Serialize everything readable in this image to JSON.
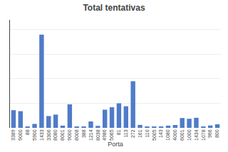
{
  "chart_data": {
    "type": "bar",
    "title": "Total tentativas",
    "xlabel": "Porta",
    "categories": [
      "3389",
      "9000",
      "88",
      "5900",
      "1433",
      "3306",
      "8080",
      "8001",
      "9000",
      "8008",
      "388",
      "1214",
      "8038",
      "4986",
      "5065",
      "81",
      "113",
      "272",
      "161",
      "110",
      "5005",
      "143",
      "1080",
      "4000",
      "6001",
      "1000",
      "1434",
      "1078",
      "966",
      "800"
    ],
    "values": [
      360,
      340,
      18,
      80,
      1900,
      240,
      270,
      45,
      480,
      25,
      18,
      130,
      40,
      370,
      420,
      500,
      440,
      950,
      60,
      25,
      25,
      18,
      45,
      58,
      200,
      185,
      205,
      25,
      48,
      72
    ],
    "color": "#4f7bc8",
    "ylim": [
      0,
      2200
    ],
    "yticks": [
      0,
      500,
      1000,
      1500,
      2000
    ],
    "grid": true,
    "tick_labels": "x"
  }
}
